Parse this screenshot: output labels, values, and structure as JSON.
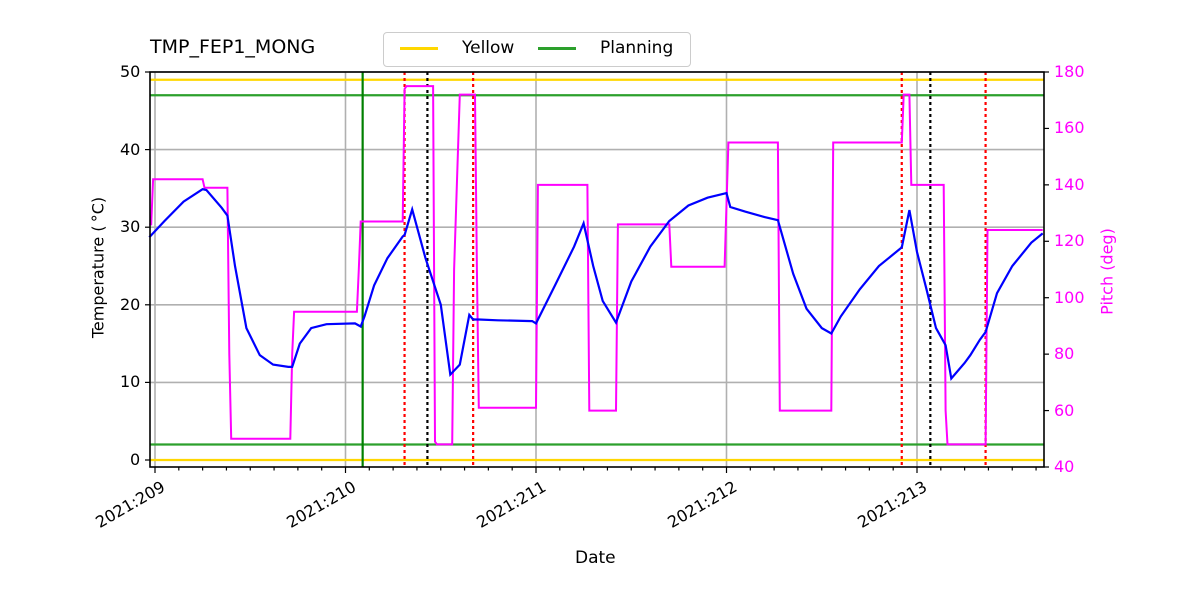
{
  "title": "TMP_FEP1_MONG",
  "legend": [
    {
      "label": "Yellow",
      "color": "#ffd700"
    },
    {
      "label": "Planning",
      "color": "#2ca02c"
    }
  ],
  "axes": {
    "xlabel": "Date",
    "ylabel_left": "Temperature ($^\\circ$C)",
    "ylabel_left_display": "Temperature ( °C)",
    "ylabel_right": "Pitch (deg)"
  },
  "chart_data": {
    "type": "line",
    "title": "TMP_FEP1_MONG",
    "xlabel": "Date",
    "ylabel": "Temperature (°C)",
    "ylabel_right": "Pitch (deg)",
    "xlim": [
      208.97,
      213.66
    ],
    "ylim": [
      -1,
      50
    ],
    "ylim_right": [
      40,
      180
    ],
    "x_ticks": [
      "2021:209",
      "2021:210",
      "2021:211",
      "2021:212",
      "2021:213"
    ],
    "y_ticks": [
      0,
      10,
      20,
      30,
      40,
      50
    ],
    "y_ticks_right": [
      40,
      60,
      80,
      100,
      120,
      140,
      160,
      180
    ],
    "grid": true,
    "legend_position": "top-center-outside",
    "hlines": [
      {
        "name": "Yellow high",
        "y": 49,
        "color": "#ffd700"
      },
      {
        "name": "Planning high",
        "y": 47,
        "color": "#2ca02c"
      },
      {
        "name": "Planning low",
        "y": 2,
        "color": "#2ca02c"
      },
      {
        "name": "Yellow low",
        "y": 0,
        "color": "#ffd700"
      }
    ],
    "vlines": [
      {
        "x": 210.09,
        "color": "#008000",
        "style": "solid"
      },
      {
        "x": 210.31,
        "color": "#ff0000",
        "style": "dotted"
      },
      {
        "x": 210.43,
        "color": "#000000",
        "style": "dotted"
      },
      {
        "x": 210.67,
        "color": "#ff0000",
        "style": "dotted"
      },
      {
        "x": 212.92,
        "color": "#ff0000",
        "style": "dotted"
      },
      {
        "x": 213.07,
        "color": "#000000",
        "style": "dotted"
      },
      {
        "x": 213.36,
        "color": "#ff0000",
        "style": "dotted"
      }
    ],
    "series": [
      {
        "name": "TMP_FEP1_MONG",
        "axis": "left",
        "color": "#0000ff",
        "x": [
          208.97,
          209.05,
          209.15,
          209.25,
          209.27,
          209.35,
          209.38,
          209.42,
          209.48,
          209.55,
          209.62,
          209.7,
          209.72,
          209.76,
          209.82,
          209.9,
          210.05,
          210.08,
          210.1,
          210.15,
          210.22,
          210.3,
          210.31,
          210.35,
          210.42,
          210.5,
          210.55,
          210.6,
          210.65,
          210.67,
          210.7,
          210.8,
          210.98,
          211.0,
          211.1,
          211.2,
          211.25,
          211.3,
          211.35,
          211.42,
          211.5,
          211.6,
          211.7,
          211.8,
          211.9,
          212.0,
          212.02,
          212.1,
          212.2,
          212.27,
          212.35,
          212.42,
          212.5,
          212.55,
          212.6,
          212.7,
          212.8,
          212.92,
          212.96,
          213.0,
          213.05,
          213.1,
          213.15,
          213.18,
          213.25,
          213.28,
          213.33,
          213.36,
          213.42,
          213.5,
          213.6,
          213.66
        ],
        "values": [
          28.7,
          30.8,
          33.3,
          34.9,
          34.8,
          32.5,
          31.5,
          25,
          17,
          13.5,
          12.3,
          12.0,
          12.0,
          15,
          17,
          17.5,
          17.6,
          17.2,
          18.5,
          22.5,
          26,
          28.8,
          29,
          32.3,
          26,
          20,
          11,
          12.3,
          18.7,
          18.1,
          18.1,
          18,
          17.9,
          17.6,
          22.5,
          27.5,
          30.5,
          25,
          20.5,
          17.7,
          23,
          27.5,
          30.8,
          32.8,
          33.8,
          34.4,
          32.6,
          32,
          31.3,
          30.9,
          24,
          19.5,
          17,
          16.3,
          18.5,
          22,
          25,
          27.4,
          32.2,
          26.8,
          22,
          17,
          14.8,
          10.5,
          12.5,
          13.5,
          15.5,
          16.5,
          21.5,
          25,
          28,
          29.2
        ]
      },
      {
        "name": "Pitch",
        "axis": "right",
        "color": "#ff00ff",
        "x": [
          208.97,
          208.98,
          208.99,
          209.25,
          209.26,
          209.38,
          209.39,
          209.4,
          209.41,
          209.71,
          209.72,
          209.73,
          210.06,
          210.07,
          210.08,
          210.3,
          210.31,
          210.32,
          210.46,
          210.47,
          210.48,
          210.55,
          210.56,
          210.57,
          210.6,
          210.62,
          210.68,
          210.69,
          210.7,
          210.98,
          211.0,
          211.01,
          211.27,
          211.28,
          211.42,
          211.43,
          211.7,
          211.71,
          211.99,
          212.01,
          212.02,
          212.27,
          212.28,
          212.54,
          212.55,
          212.56,
          212.92,
          212.93,
          212.96,
          212.97,
          213.14,
          213.15,
          213.16,
          213.35,
          213.36,
          213.37,
          213.66
        ],
        "values": [
          126,
          126,
          142,
          142,
          139,
          139,
          80,
          50,
          50,
          50,
          80,
          95,
          95,
          110,
          127,
          127,
          174,
          175,
          175,
          49,
          48,
          48,
          48,
          110,
          172,
          172,
          172,
          110,
          61,
          61,
          61,
          140,
          140,
          60,
          60,
          126,
          126,
          111,
          111,
          155,
          155,
          155,
          60,
          60,
          60,
          155,
          155,
          172,
          172,
          140,
          140,
          60,
          48,
          48,
          48,
          124,
          124
        ]
      }
    ]
  }
}
